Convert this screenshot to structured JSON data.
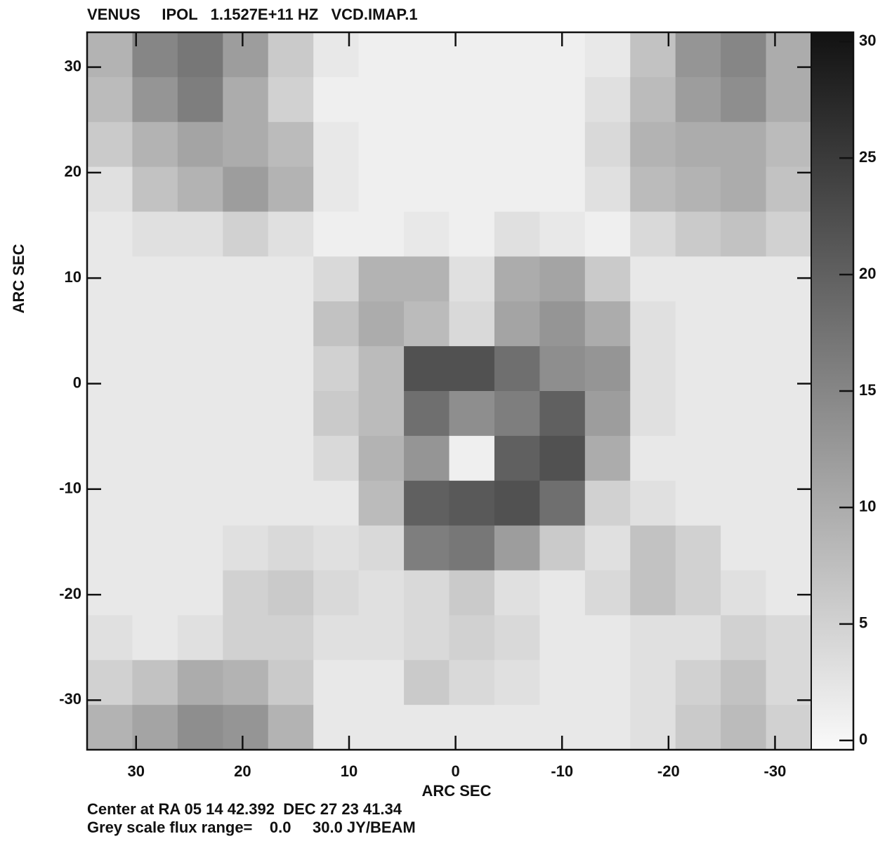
{
  "chart_data": {
    "type": "image",
    "title": "VENUS     IPOL   1.1527E+11 HZ   VCD.IMAP.1",
    "xlabel": "ARC SEC",
    "ylabel": "ARC SEC",
    "footer": [
      "Center at RA 05 14 42.392  DEC 27 23 41.34",
      "Grey scale flux range=    0.0     30.0 JY/BEAM"
    ],
    "xlim": [
      34.6,
      -33.4
    ],
    "ylim": [
      -34.7,
      33.3
    ],
    "xticks": [
      30,
      20,
      10,
      0,
      -10,
      -20,
      -30
    ],
    "yticks": [
      -30,
      -20,
      -10,
      0,
      10,
      20,
      30
    ],
    "clim": [
      -0.4,
      30.4
    ],
    "cticks": [
      0,
      5,
      10,
      15,
      20,
      25,
      30
    ],
    "colormap": "grey-inverted",
    "z": [
      [
        9,
        15,
        17,
        12,
        6,
        2,
        1,
        1,
        1,
        1,
        1,
        2,
        7,
        13,
        15,
        10
      ],
      [
        8,
        13,
        16,
        10,
        5,
        1,
        1,
        1,
        1,
        1,
        1,
        3,
        8,
        12,
        14,
        10
      ],
      [
        6,
        9,
        11,
        10,
        8,
        2,
        1,
        1,
        1,
        1,
        1,
        4,
        9,
        10,
        10,
        8
      ],
      [
        3,
        7,
        9,
        12,
        9,
        2,
        1,
        1,
        1,
        1,
        1,
        3,
        8,
        9,
        10,
        7
      ],
      [
        2,
        3,
        3,
        5,
        3,
        1,
        1,
        2,
        1,
        3,
        2,
        1,
        4,
        6,
        7,
        5
      ],
      [
        2,
        2,
        2,
        2,
        2,
        4,
        9,
        9,
        3,
        10,
        11,
        6,
        2,
        2,
        2,
        2
      ],
      [
        2,
        2,
        2,
        2,
        2,
        7,
        10,
        8,
        4,
        11,
        13,
        10,
        3,
        2,
        2,
        2
      ],
      [
        2,
        2,
        2,
        2,
        2,
        5,
        8,
        22,
        22,
        18,
        14,
        13,
        3,
        2,
        2,
        2
      ],
      [
        2,
        2,
        2,
        2,
        2,
        6,
        8,
        18,
        14,
        16,
        20,
        12,
        3,
        2,
        2,
        2
      ],
      [
        2,
        2,
        2,
        2,
        2,
        4,
        9,
        13,
        1,
        20,
        22,
        10,
        2,
        2,
        2,
        2
      ],
      [
        2,
        2,
        2,
        2,
        2,
        2,
        8,
        20,
        21,
        22,
        18,
        5,
        3,
        2,
        2,
        2
      ],
      [
        2,
        2,
        2,
        3,
        4,
        3,
        4,
        16,
        17,
        12,
        6,
        3,
        7,
        5,
        2,
        2
      ],
      [
        2,
        2,
        2,
        5,
        6,
        4,
        3,
        4,
        6,
        3,
        2,
        4,
        7,
        5,
        3,
        2
      ],
      [
        3,
        2,
        3,
        5,
        5,
        3,
        3,
        4,
        5,
        4,
        2,
        2,
        3,
        3,
        5,
        4
      ],
      [
        5,
        7,
        10,
        9,
        6,
        2,
        2,
        6,
        4,
        3,
        2,
        2,
        3,
        5,
        7,
        4
      ],
      [
        9,
        11,
        14,
        13,
        9,
        2,
        2,
        2,
        2,
        2,
        2,
        2,
        3,
        6,
        8,
        5
      ]
    ]
  }
}
